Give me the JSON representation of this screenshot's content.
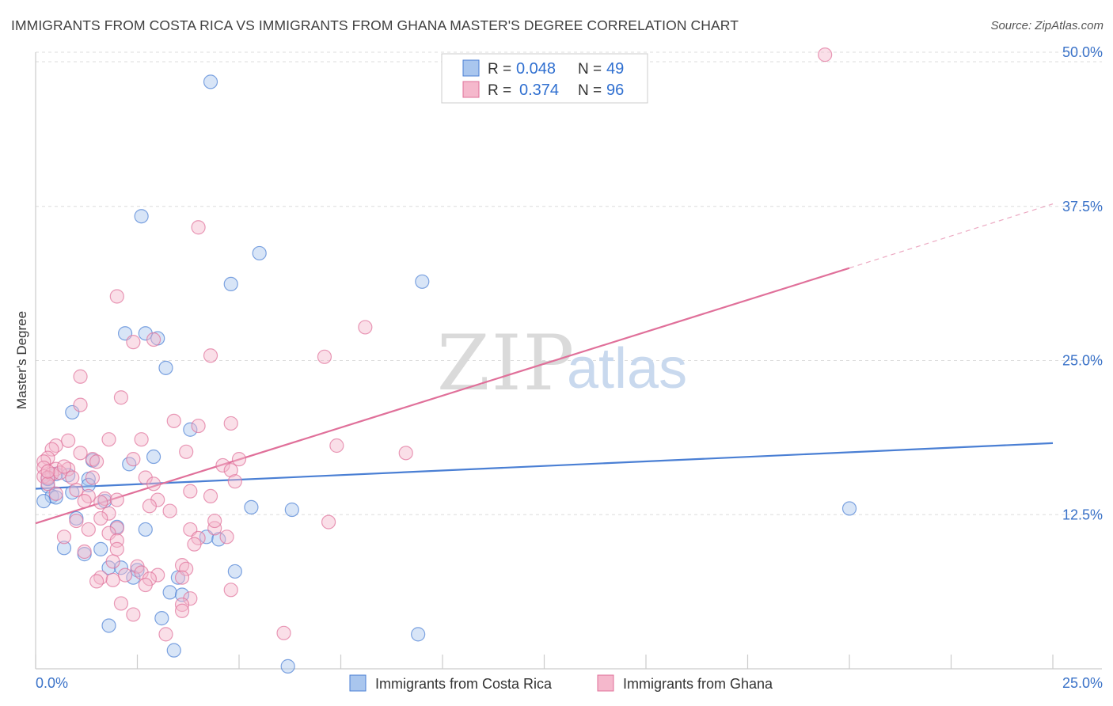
{
  "chart_data": {
    "type": "scatter",
    "title": "IMMIGRANTS FROM COSTA RICA VS IMMIGRANTS FROM GHANA MASTER'S DEGREE CORRELATION CHART",
    "source": "Source: ZipAtlas.com",
    "xlabel": "",
    "ylabel": "Master's Degree",
    "xlim": [
      0,
      25
    ],
    "ylim": [
      0,
      50
    ],
    "x_tick_labels": [
      "0.0%",
      "25.0%"
    ],
    "y_tick_labels": [
      "12.5%",
      "25.0%",
      "37.5%",
      "50.0%"
    ],
    "y_tick_values": [
      12.5,
      25.0,
      37.5,
      50.0
    ],
    "watermark": {
      "zip": "ZIP",
      "atlas": "atlas"
    },
    "stats_box": [
      {
        "r_label": "R =",
        "r_value": "0.048",
        "n_label": "N =",
        "n_value": "49"
      },
      {
        "r_label": "R =",
        "r_value": "0.374",
        "n_label": "N =",
        "n_value": "96"
      }
    ],
    "series": [
      {
        "name": "Immigrants from Costa Rica",
        "color": "#4a7fd4",
        "fill": "#a9c6ee",
        "trend": {
          "x0": 0,
          "y0": 14.6,
          "x1": 25,
          "y1": 18.3
        },
        "points": [
          [
            4.3,
            47.6
          ],
          [
            2.6,
            36.7
          ],
          [
            5.5,
            33.7
          ],
          [
            4.8,
            31.2
          ],
          [
            9.5,
            31.4
          ],
          [
            2.2,
            27.2
          ],
          [
            2.7,
            27.2
          ],
          [
            3.0,
            26.8
          ],
          [
            3.2,
            24.4
          ],
          [
            0.9,
            20.8
          ],
          [
            3.8,
            19.4
          ],
          [
            1.4,
            16.9
          ],
          [
            2.3,
            16.6
          ],
          [
            2.9,
            17.2
          ],
          [
            0.5,
            15.8
          ],
          [
            0.8,
            15.7
          ],
          [
            1.3,
            15.4
          ],
          [
            1.3,
            14.9
          ],
          [
            0.3,
            14.8
          ],
          [
            0.9,
            14.3
          ],
          [
            0.4,
            14.0
          ],
          [
            0.5,
            13.9
          ],
          [
            0.2,
            13.6
          ],
          [
            1.7,
            13.6
          ],
          [
            5.3,
            13.1
          ],
          [
            6.3,
            12.9
          ],
          [
            1.0,
            12.2
          ],
          [
            20.0,
            13.0
          ],
          [
            2.0,
            11.5
          ],
          [
            2.7,
            11.3
          ],
          [
            4.2,
            10.7
          ],
          [
            4.5,
            10.5
          ],
          [
            0.7,
            9.8
          ],
          [
            1.6,
            9.7
          ],
          [
            1.2,
            9.3
          ],
          [
            1.8,
            8.2
          ],
          [
            2.1,
            8.2
          ],
          [
            2.5,
            8.0
          ],
          [
            3.5,
            7.4
          ],
          [
            2.4,
            7.4
          ],
          [
            4.9,
            7.9
          ],
          [
            3.3,
            6.2
          ],
          [
            3.6,
            6.0
          ],
          [
            3.1,
            4.1
          ],
          [
            1.8,
            3.5
          ],
          [
            9.4,
            2.8
          ],
          [
            3.4,
            1.5
          ],
          [
            6.2,
            0.2
          ],
          [
            0.3,
            15.4
          ]
        ]
      },
      {
        "name": "Immigrants from Ghana",
        "color": "#e0709a",
        "fill": "#f5b8cc",
        "trend": {
          "x0": 0,
          "y0": 11.8,
          "x1": 20,
          "y1": 32.5,
          "dash_x1": 25,
          "dash_y1": 37.7
        },
        "points": [
          [
            19.4,
            49.8
          ],
          [
            4.0,
            35.8
          ],
          [
            2.0,
            30.2
          ],
          [
            8.1,
            27.7
          ],
          [
            2.4,
            26.5
          ],
          [
            2.9,
            26.7
          ],
          [
            4.3,
            25.4
          ],
          [
            7.1,
            25.3
          ],
          [
            1.1,
            23.7
          ],
          [
            2.1,
            22.0
          ],
          [
            1.1,
            21.4
          ],
          [
            3.4,
            20.1
          ],
          [
            4.0,
            19.7
          ],
          [
            4.8,
            19.9
          ],
          [
            0.8,
            18.5
          ],
          [
            1.8,
            18.6
          ],
          [
            2.6,
            18.6
          ],
          [
            0.5,
            18.1
          ],
          [
            0.4,
            17.8
          ],
          [
            1.1,
            17.5
          ],
          [
            3.7,
            17.6
          ],
          [
            7.4,
            18.1
          ],
          [
            9.1,
            17.5
          ],
          [
            0.3,
            17.1
          ],
          [
            0.2,
            16.8
          ],
          [
            1.4,
            17.0
          ],
          [
            2.4,
            17.0
          ],
          [
            4.6,
            16.5
          ],
          [
            4.8,
            16.1
          ],
          [
            0.2,
            16.3
          ],
          [
            0.5,
            16.2
          ],
          [
            0.8,
            16.2
          ],
          [
            0.4,
            15.8
          ],
          [
            0.6,
            15.9
          ],
          [
            0.2,
            15.6
          ],
          [
            0.3,
            15.5
          ],
          [
            1.4,
            15.5
          ],
          [
            2.7,
            15.5
          ],
          [
            2.9,
            15.0
          ],
          [
            4.9,
            15.2
          ],
          [
            0.3,
            15.0
          ],
          [
            0.5,
            14.2
          ],
          [
            1.0,
            14.5
          ],
          [
            1.3,
            14.0
          ],
          [
            1.7,
            13.8
          ],
          [
            3.0,
            13.7
          ],
          [
            4.3,
            14.0
          ],
          [
            3.8,
            14.4
          ],
          [
            1.2,
            13.6
          ],
          [
            1.6,
            13.5
          ],
          [
            2.0,
            13.7
          ],
          [
            5.0,
            17.0
          ],
          [
            3.3,
            12.8
          ],
          [
            1.8,
            12.6
          ],
          [
            1.0,
            12.0
          ],
          [
            1.6,
            12.2
          ],
          [
            7.2,
            11.9
          ],
          [
            2.0,
            11.4
          ],
          [
            1.3,
            11.3
          ],
          [
            3.8,
            11.3
          ],
          [
            4.4,
            11.4
          ],
          [
            1.8,
            11.0
          ],
          [
            0.7,
            10.7
          ],
          [
            4.0,
            10.6
          ],
          [
            4.7,
            10.7
          ],
          [
            2.0,
            10.4
          ],
          [
            3.9,
            10.1
          ],
          [
            1.2,
            9.5
          ],
          [
            2.0,
            9.7
          ],
          [
            1.9,
            8.7
          ],
          [
            2.5,
            8.3
          ],
          [
            3.6,
            8.4
          ],
          [
            3.7,
            8.1
          ],
          [
            2.6,
            7.8
          ],
          [
            2.2,
            7.6
          ],
          [
            3.0,
            7.6
          ],
          [
            1.6,
            7.4
          ],
          [
            3.6,
            7.4
          ],
          [
            1.5,
            7.1
          ],
          [
            1.9,
            7.2
          ],
          [
            2.8,
            7.3
          ],
          [
            2.7,
            6.8
          ],
          [
            4.8,
            6.4
          ],
          [
            3.8,
            5.7
          ],
          [
            2.1,
            5.3
          ],
          [
            3.6,
            5.2
          ],
          [
            3.6,
            4.7
          ],
          [
            2.4,
            4.4
          ],
          [
            3.2,
            2.8
          ],
          [
            6.1,
            2.9
          ],
          [
            0.3,
            16.0
          ],
          [
            0.7,
            16.4
          ],
          [
            0.9,
            15.5
          ],
          [
            1.5,
            16.8
          ],
          [
            2.8,
            13.2
          ],
          [
            4.4,
            12.0
          ]
        ]
      }
    ]
  }
}
